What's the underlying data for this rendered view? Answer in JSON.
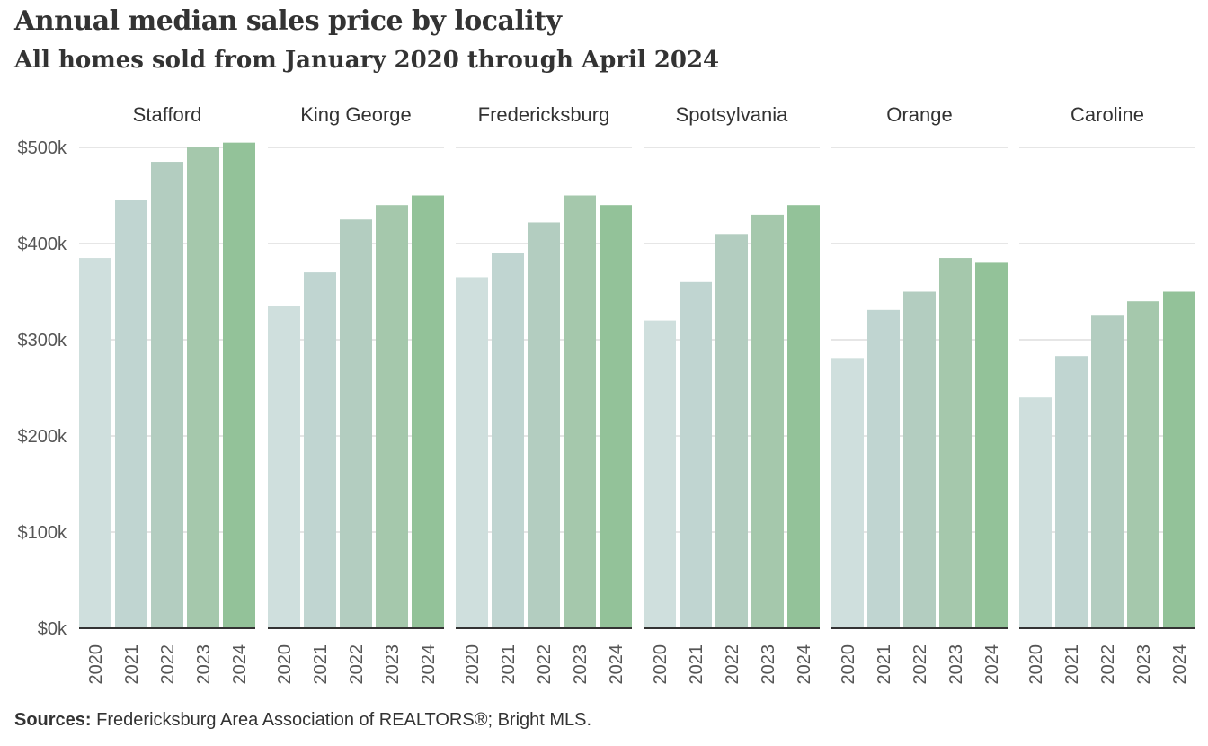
{
  "title": "Annual median sales price by locality",
  "subtitle": "All homes sold from January 2020 through April 2024",
  "source_label": "Sources:",
  "source_text": "Fredericksburg  Area Association of REALTORS®;  Bright MLS.",
  "colors": [
    "#cfdfdd",
    "#c0d5d1",
    "#b3cdc0",
    "#a5c8ac",
    "#93c299"
  ],
  "chart_data": {
    "type": "bar",
    "title": "Annual median sales price by locality",
    "subtitle": "All homes sold from January 2020 through April 2024",
    "categories": [
      "2020",
      "2021",
      "2022",
      "2023",
      "2024"
    ],
    "ylim": [
      0,
      500000
    ],
    "yticks": [
      0,
      100000,
      200000,
      300000,
      400000,
      500000
    ],
    "ytick_labels": [
      "$0k",
      "$100k",
      "$200k",
      "$300k",
      "$400k",
      "$500k"
    ],
    "grid": true,
    "panels": [
      {
        "name": "Stafford",
        "values": [
          385000,
          445000,
          485000,
          500000,
          505000
        ]
      },
      {
        "name": "King George",
        "values": [
          335000,
          370000,
          425000,
          440000,
          450000
        ]
      },
      {
        "name": "Fredericksburg",
        "values": [
          365000,
          390000,
          422000,
          450000,
          440000
        ]
      },
      {
        "name": "Spotsylvania",
        "values": [
          320000,
          360000,
          410000,
          430000,
          440000
        ]
      },
      {
        "name": "Orange",
        "values": [
          281000,
          331000,
          350000,
          385000,
          380000
        ]
      },
      {
        "name": "Caroline",
        "values": [
          240000,
          283000,
          325000,
          340000,
          350000
        ]
      }
    ]
  }
}
